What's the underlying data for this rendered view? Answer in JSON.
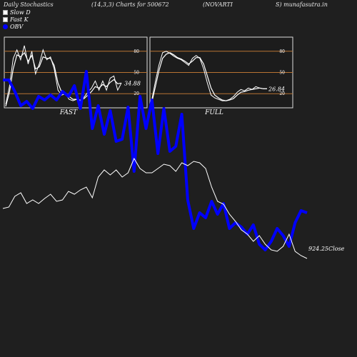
{
  "header": {
    "left": "Daily Stochastics",
    "params": "(14,3,3) Charts for 500672",
    "symbol_a": "(NOVARTI",
    "symbol_b": "S) munafasutra.in"
  },
  "legend": {
    "slow_d": "Slow  D",
    "fast_k": "Fast K",
    "obv": "OBV"
  },
  "colors": {
    "background": "#1f1f1f",
    "panel_bg": "#1c1c1c",
    "band_line": "#b87333",
    "stoch_line": "#ffffff",
    "obv_line": "#0000ff",
    "close_line": "#ffffff"
  },
  "chart_data": [
    {
      "type": "line",
      "title": "FAST",
      "ylim": [
        0,
        100
      ],
      "yticks": [
        "80",
        "50",
        "20"
      ],
      "bands": [
        80,
        50,
        20
      ],
      "last_value_label": "34.88",
      "series": [
        {
          "name": "Fast K",
          "values": [
            5,
            30,
            70,
            82,
            68,
            88,
            62,
            80,
            48,
            62,
            82,
            68,
            72,
            55,
            25,
            18,
            20,
            12,
            10,
            12,
            10,
            15,
            22,
            28,
            38,
            25,
            38,
            25,
            42,
            45,
            25,
            35
          ]
        },
        {
          "name": "Slow  D",
          "values": [
            2,
            22,
            55,
            75,
            72,
            78,
            66,
            74,
            55,
            58,
            72,
            70,
            70,
            60,
            35,
            22,
            20,
            16,
            12,
            12,
            11,
            13,
            18,
            23,
            30,
            28,
            33,
            30,
            36,
            40,
            34,
            35
          ]
        }
      ]
    },
    {
      "type": "line",
      "title": "FULL",
      "ylim": [
        0,
        100
      ],
      "yticks": [
        "80",
        "50",
        "20"
      ],
      "bands": [
        80,
        50,
        20
      ],
      "last_value_label": "26.84",
      "series": [
        {
          "name": "Fast K",
          "values": [
            8,
            35,
            60,
            78,
            80,
            77,
            73,
            70,
            68,
            64,
            60,
            70,
            74,
            70,
            55,
            35,
            18,
            14,
            12,
            10,
            10,
            12,
            16,
            22,
            26,
            24,
            28,
            26,
            30,
            28,
            27,
            27
          ]
        },
        {
          "name": "Slow  D",
          "values": [
            5,
            28,
            52,
            70,
            76,
            78,
            75,
            71,
            69,
            66,
            62,
            66,
            71,
            71,
            62,
            45,
            28,
            18,
            14,
            11,
            10,
            11,
            13,
            18,
            22,
            23,
            25,
            26,
            27,
            28,
            27,
            27
          ]
        }
      ]
    },
    {
      "type": "line",
      "title": "",
      "last_value_label": "924.25Close",
      "series": [
        {
          "name": "OBV",
          "values": [
            112,
            112,
            128,
            148,
            142,
            152,
            135,
            140,
            133,
            140,
            128,
            135,
            120,
            152,
            100,
            180,
            148,
            188,
            155,
            198,
            195,
            150,
            240,
            135,
            180,
            140,
            215,
            152,
            212,
            205,
            160,
            280,
            320,
            298,
            305,
            282,
            300,
            285,
            320,
            312,
            318,
            328,
            315,
            342,
            350,
            338,
            320,
            330,
            345,
            312,
            295,
            298
          ]
        },
        {
          "name": "Close",
          "values": [
            0,
            0,
            0,
            0,
            0,
            0,
            0,
            0,
            0,
            0,
            0,
            0,
            0,
            0,
            0,
            0,
            0,
            0,
            0,
            0,
            0,
            0,
            0,
            0,
            0,
            0,
            0,
            0,
            0,
            0,
            0,
            0,
            0,
            0,
            0,
            0,
            0,
            0,
            0,
            0,
            0,
            0,
            0,
            0,
            0,
            0,
            0,
            0,
            0,
            0,
            0,
            0
          ]
        }
      ]
    }
  ]
}
